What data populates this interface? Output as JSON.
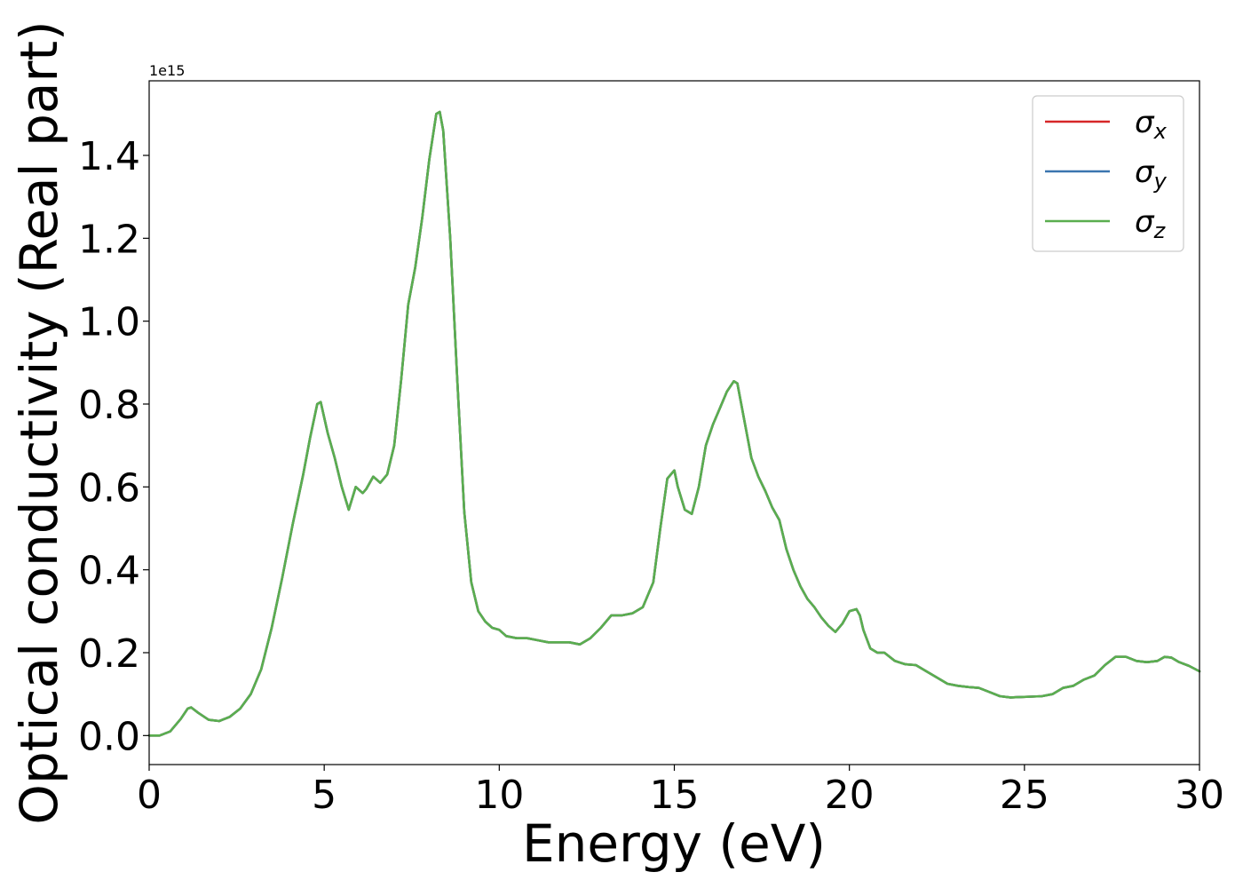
{
  "chart_data": {
    "type": "line",
    "xlabel": "Energy (eV)",
    "ylabel": "Optical conductivity (Real part)",
    "y_offset_label": "1e15",
    "y_scale_factor": 1000000000000000.0,
    "xlim": [
      0,
      30
    ],
    "ylim": [
      -0.07,
      1.58
    ],
    "x_ticks": [
      0,
      5,
      10,
      15,
      20,
      25,
      30
    ],
    "x_tick_labels": [
      "0",
      "5",
      "10",
      "15",
      "20",
      "25",
      "30"
    ],
    "y_ticks": [
      0.0,
      0.2,
      0.4,
      0.6,
      0.8,
      1.0,
      1.2,
      1.4
    ],
    "y_tick_labels": [
      "0.0",
      "0.2",
      "0.4",
      "0.6",
      "0.8",
      "1.0",
      "1.2",
      "1.4"
    ],
    "grid": false,
    "legend_position": "top-right",
    "x": [
      0,
      0.3,
      0.6,
      0.9,
      1.1,
      1.2,
      1.4,
      1.7,
      2.0,
      2.3,
      2.6,
      2.9,
      3.2,
      3.5,
      3.8,
      4.1,
      4.4,
      4.6,
      4.8,
      4.9,
      5.1,
      5.3,
      5.5,
      5.7,
      5.9,
      6.1,
      6.2,
      6.4,
      6.6,
      6.8,
      7.0,
      7.2,
      7.4,
      7.6,
      7.8,
      8.0,
      8.2,
      8.3,
      8.4,
      8.6,
      8.8,
      9.0,
      9.2,
      9.4,
      9.6,
      9.8,
      10.0,
      10.2,
      10.5,
      10.8,
      11.1,
      11.4,
      11.7,
      12.0,
      12.3,
      12.6,
      12.9,
      13.2,
      13.5,
      13.8,
      14.1,
      14.4,
      14.6,
      14.8,
      15.0,
      15.1,
      15.3,
      15.5,
      15.7,
      15.9,
      16.1,
      16.3,
      16.5,
      16.7,
      16.8,
      17.0,
      17.2,
      17.4,
      17.6,
      17.8,
      18.0,
      18.2,
      18.4,
      18.6,
      18.8,
      19.0,
      19.2,
      19.4,
      19.6,
      19.8,
      20.0,
      20.2,
      20.3,
      20.4,
      20.6,
      20.8,
      21.0,
      21.3,
      21.6,
      21.9,
      22.2,
      22.5,
      22.8,
      23.1,
      23.4,
      23.7,
      24.0,
      24.3,
      24.6,
      24.9,
      25.2,
      25.5,
      25.8,
      26.1,
      26.4,
      26.7,
      27.0,
      27.3,
      27.6,
      27.9,
      28.2,
      28.5,
      28.8,
      29.0,
      29.2,
      29.4,
      29.7,
      30.0
    ],
    "series": [
      {
        "name": "σx",
        "color": "#d62728",
        "values": [
          0.0,
          0.0,
          0.01,
          0.04,
          0.065,
          0.068,
          0.055,
          0.038,
          0.035,
          0.045,
          0.065,
          0.1,
          0.16,
          0.26,
          0.38,
          0.51,
          0.63,
          0.72,
          0.8,
          0.805,
          0.73,
          0.67,
          0.6,
          0.545,
          0.6,
          0.585,
          0.595,
          0.625,
          0.61,
          0.63,
          0.7,
          0.86,
          1.04,
          1.13,
          1.25,
          1.39,
          1.5,
          1.505,
          1.46,
          1.2,
          0.86,
          0.54,
          0.37,
          0.3,
          0.275,
          0.26,
          0.255,
          0.24,
          0.235,
          0.235,
          0.23,
          0.225,
          0.225,
          0.225,
          0.22,
          0.235,
          0.26,
          0.29,
          0.29,
          0.295,
          0.31,
          0.37,
          0.5,
          0.62,
          0.64,
          0.6,
          0.545,
          0.535,
          0.6,
          0.7,
          0.75,
          0.79,
          0.83,
          0.855,
          0.85,
          0.76,
          0.67,
          0.625,
          0.59,
          0.55,
          0.52,
          0.45,
          0.4,
          0.36,
          0.33,
          0.31,
          0.285,
          0.265,
          0.25,
          0.27,
          0.3,
          0.305,
          0.29,
          0.255,
          0.21,
          0.2,
          0.2,
          0.18,
          0.172,
          0.17,
          0.155,
          0.14,
          0.125,
          0.12,
          0.117,
          0.115,
          0.105,
          0.095,
          0.092,
          0.093,
          0.094,
          0.095,
          0.1,
          0.115,
          0.12,
          0.135,
          0.145,
          0.17,
          0.19,
          0.19,
          0.18,
          0.177,
          0.18,
          0.19,
          0.188,
          0.178,
          0.168,
          0.155
        ]
      },
      {
        "name": "σy",
        "color": "#3b75af",
        "values": [
          0.0,
          0.0,
          0.01,
          0.04,
          0.065,
          0.068,
          0.055,
          0.038,
          0.035,
          0.045,
          0.065,
          0.1,
          0.16,
          0.26,
          0.38,
          0.51,
          0.63,
          0.72,
          0.8,
          0.805,
          0.73,
          0.67,
          0.6,
          0.545,
          0.6,
          0.585,
          0.595,
          0.625,
          0.61,
          0.63,
          0.7,
          0.86,
          1.04,
          1.13,
          1.25,
          1.39,
          1.5,
          1.505,
          1.46,
          1.2,
          0.86,
          0.54,
          0.37,
          0.3,
          0.275,
          0.26,
          0.255,
          0.24,
          0.235,
          0.235,
          0.23,
          0.225,
          0.225,
          0.225,
          0.22,
          0.235,
          0.26,
          0.29,
          0.29,
          0.295,
          0.31,
          0.37,
          0.5,
          0.62,
          0.64,
          0.6,
          0.545,
          0.535,
          0.6,
          0.7,
          0.75,
          0.79,
          0.83,
          0.855,
          0.85,
          0.76,
          0.67,
          0.625,
          0.59,
          0.55,
          0.52,
          0.45,
          0.4,
          0.36,
          0.33,
          0.31,
          0.285,
          0.265,
          0.25,
          0.27,
          0.3,
          0.305,
          0.29,
          0.255,
          0.21,
          0.2,
          0.2,
          0.18,
          0.172,
          0.17,
          0.155,
          0.14,
          0.125,
          0.12,
          0.117,
          0.115,
          0.105,
          0.095,
          0.092,
          0.093,
          0.094,
          0.095,
          0.1,
          0.115,
          0.12,
          0.135,
          0.145,
          0.17,
          0.19,
          0.19,
          0.18,
          0.177,
          0.18,
          0.19,
          0.188,
          0.178,
          0.168,
          0.155
        ]
      },
      {
        "name": "σz",
        "color": "#5aae4f",
        "values": [
          0.0,
          0.0,
          0.01,
          0.04,
          0.065,
          0.068,
          0.055,
          0.038,
          0.035,
          0.045,
          0.065,
          0.1,
          0.16,
          0.26,
          0.38,
          0.51,
          0.63,
          0.72,
          0.8,
          0.805,
          0.73,
          0.67,
          0.6,
          0.545,
          0.6,
          0.585,
          0.595,
          0.625,
          0.61,
          0.63,
          0.7,
          0.86,
          1.04,
          1.13,
          1.25,
          1.39,
          1.5,
          1.505,
          1.46,
          1.2,
          0.86,
          0.54,
          0.37,
          0.3,
          0.275,
          0.26,
          0.255,
          0.24,
          0.235,
          0.235,
          0.23,
          0.225,
          0.225,
          0.225,
          0.22,
          0.235,
          0.26,
          0.29,
          0.29,
          0.295,
          0.31,
          0.37,
          0.5,
          0.62,
          0.64,
          0.6,
          0.545,
          0.535,
          0.6,
          0.7,
          0.75,
          0.79,
          0.83,
          0.855,
          0.85,
          0.76,
          0.67,
          0.625,
          0.59,
          0.55,
          0.52,
          0.45,
          0.4,
          0.36,
          0.33,
          0.31,
          0.285,
          0.265,
          0.25,
          0.27,
          0.3,
          0.305,
          0.29,
          0.255,
          0.21,
          0.2,
          0.2,
          0.18,
          0.172,
          0.17,
          0.155,
          0.14,
          0.125,
          0.12,
          0.117,
          0.115,
          0.105,
          0.095,
          0.092,
          0.093,
          0.094,
          0.095,
          0.1,
          0.115,
          0.12,
          0.135,
          0.145,
          0.17,
          0.19,
          0.19,
          0.18,
          0.177,
          0.18,
          0.19,
          0.188,
          0.178,
          0.168,
          0.155
        ]
      }
    ],
    "legend": [
      {
        "symbol": "σ",
        "subscript": "x",
        "color": "#d62728"
      },
      {
        "symbol": "σ",
        "subscript": "y",
        "color": "#3b75af"
      },
      {
        "symbol": "σ",
        "subscript": "z",
        "color": "#5aae4f"
      }
    ]
  }
}
